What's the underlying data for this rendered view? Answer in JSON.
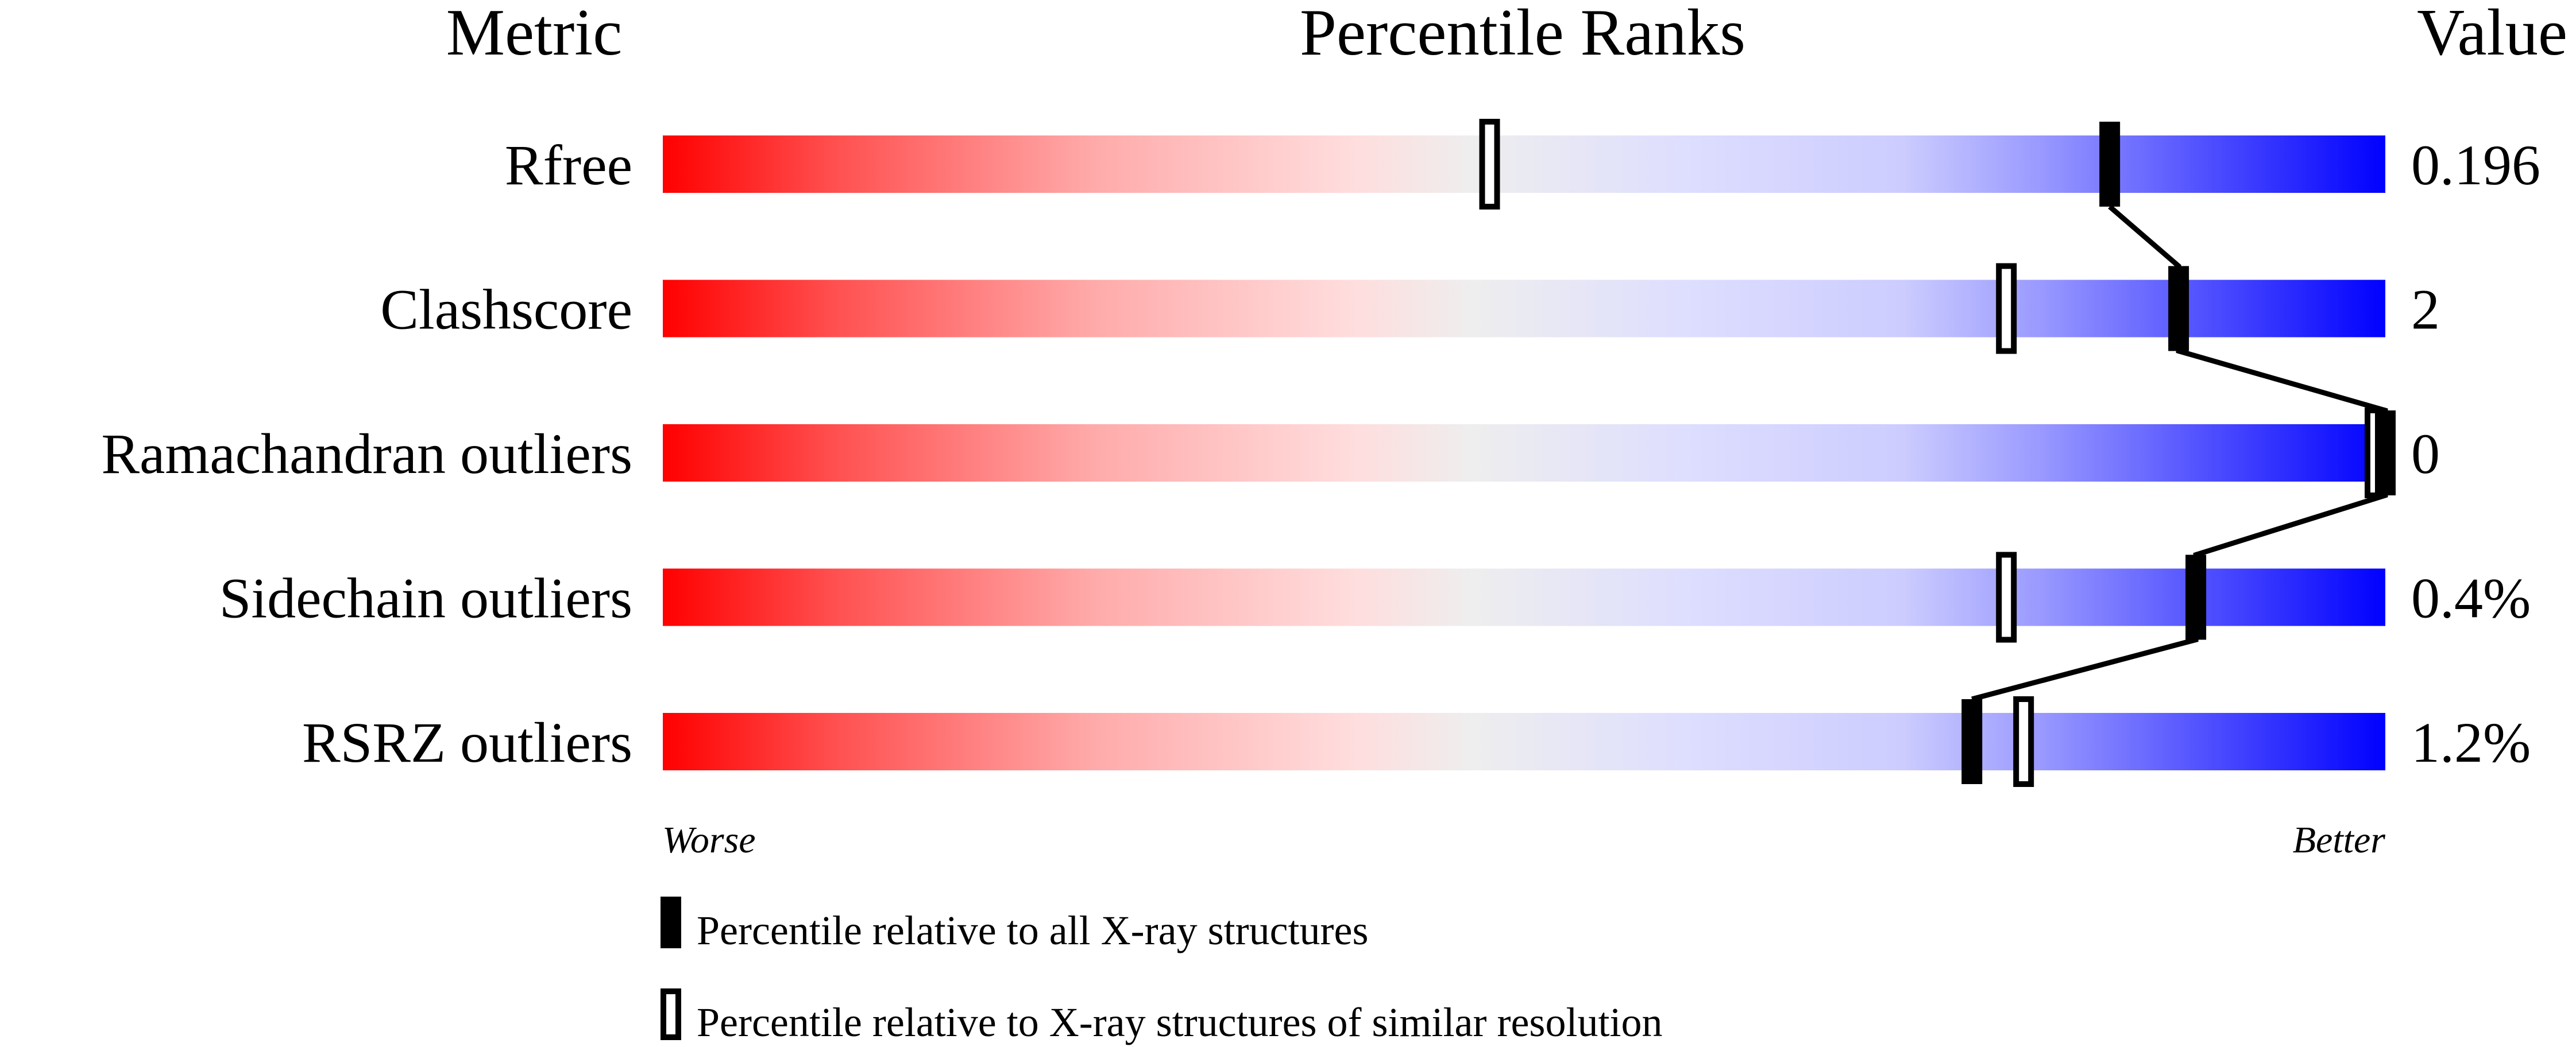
{
  "chart_data": {
    "type": "percentile-bar",
    "headers": {
      "metric": "Metric",
      "ranks": "Percentile Ranks",
      "value": "Value"
    },
    "xlim": [
      0,
      100
    ],
    "colors": {
      "worse": "#ff0000",
      "neutral": "#eeeeee",
      "better": "#0000ff",
      "marker": "#000000"
    },
    "rows": [
      {
        "metric": "Rfree",
        "value": "0.196",
        "percentile_all": 84,
        "percentile_similar": 48
      },
      {
        "metric": "Clashscore",
        "value": "2",
        "percentile_all": 88,
        "percentile_similar": 78
      },
      {
        "metric": "Ramachandran outliers",
        "value": "0",
        "percentile_all": 100,
        "percentile_similar": 100
      },
      {
        "metric": "Sidechain outliers",
        "value": "0.4%",
        "percentile_all": 89,
        "percentile_similar": 78
      },
      {
        "metric": "RSRZ outliers",
        "value": "1.2%",
        "percentile_all": 76,
        "percentile_similar": 79
      }
    ],
    "axis_labels": {
      "left": "Worse",
      "right": "Better"
    },
    "legend": [
      {
        "marker": "filled",
        "label": "Percentile relative to all X-ray structures"
      },
      {
        "marker": "open",
        "label": "Percentile relative to X-ray structures of similar resolution"
      }
    ]
  }
}
